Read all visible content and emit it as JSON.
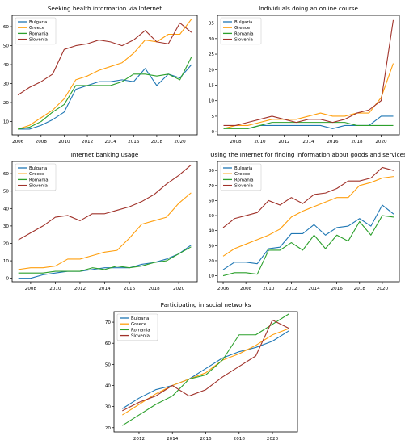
{
  "colors": {
    "Bulgaria": "#1f77b4",
    "Greece": "#ff9f0e",
    "Romania": "#2ca02c",
    "Slovenia": "#a0322a"
  },
  "chart_data": [
    {
      "type": "line",
      "title": "Seeking health information via Internet",
      "xlabel": "",
      "ylabel": "",
      "xlim": [
        2005.5,
        2021.5
      ],
      "ylim": [
        3,
        66
      ],
      "xticks": [
        "2006",
        "2008",
        "2010",
        "2012",
        "2014",
        "2016",
        "2018",
        "2020"
      ],
      "yticks": [
        "10",
        "20",
        "30",
        "40",
        "50",
        "60"
      ],
      "legend": "top-left",
      "x": [
        2006,
        2007,
        2008,
        2009,
        2010,
        2011,
        2012,
        2013,
        2014,
        2015,
        2016,
        2017,
        2018,
        2019,
        2020,
        2021
      ],
      "series": [
        {
          "name": "Bulgaria",
          "values": [
            6,
            6,
            8,
            11,
            15,
            27,
            29,
            31,
            31,
            32,
            31,
            38,
            29,
            35,
            33,
            40
          ]
        },
        {
          "name": "Greece",
          "values": [
            6,
            8,
            12,
            16,
            22,
            32,
            34,
            37,
            39,
            41,
            46,
            53,
            52,
            56,
            56,
            64
          ]
        },
        {
          "name": "Romania",
          "values": [
            6,
            7,
            10,
            15,
            19,
            29,
            29,
            29,
            29,
            31,
            35,
            35,
            34,
            35,
            32,
            44
          ]
        },
        {
          "name": "Slovenia",
          "values": [
            24,
            28,
            31,
            35,
            48,
            50,
            51,
            53,
            52,
            50,
            53,
            58,
            52,
            51,
            62,
            57
          ]
        }
      ]
    },
    {
      "type": "line",
      "title": "Individuals doing an online course",
      "xlabel": "",
      "ylabel": "",
      "xlim": [
        2006.5,
        2021.5
      ],
      "ylim": [
        -1,
        37.5
      ],
      "xticks": [
        "2008",
        "2010",
        "2012",
        "2014",
        "2016",
        "2018",
        "2020"
      ],
      "yticks": [
        "0",
        "5",
        "10",
        "15",
        "20",
        "25",
        "30",
        "35"
      ],
      "legend": "top-left",
      "x": [
        2007,
        2008,
        2009,
        2010,
        2011,
        2012,
        2013,
        2014,
        2015,
        2016,
        2017,
        2018,
        2019,
        2020,
        2021
      ],
      "series": [
        {
          "name": "Bulgaria",
          "values": [
            null,
            null,
            1,
            2,
            2,
            2,
            2,
            2,
            2,
            1,
            2,
            2,
            2,
            5,
            5
          ]
        },
        {
          "name": "Greece",
          "values": [
            1,
            2,
            2,
            3,
            4,
            4,
            4,
            5,
            6,
            5,
            5,
            6,
            6,
            11,
            22
          ]
        },
        {
          "name": "Romania",
          "values": [
            1,
            1,
            1,
            2,
            3,
            3,
            3,
            3,
            3,
            3,
            3,
            2,
            2,
            2,
            2
          ]
        },
        {
          "name": "Slovenia",
          "values": [
            2,
            2,
            3,
            4,
            5,
            4,
            3,
            4,
            4,
            3,
            4,
            6,
            7,
            10,
            36
          ]
        }
      ]
    },
    {
      "type": "line",
      "title": "Internet banking usage",
      "xlabel": "",
      "ylabel": "",
      "xlim": [
        2006.5,
        2021.5
      ],
      "ylim": [
        -2,
        67
      ],
      "xticks": [
        "2008",
        "2010",
        "2012",
        "2014",
        "2016",
        "2018",
        "2020"
      ],
      "yticks": [
        "0",
        "10",
        "20",
        "30",
        "40",
        "50",
        "60"
      ],
      "legend": "top-left",
      "x": [
        2007,
        2008,
        2009,
        2010,
        2011,
        2012,
        2013,
        2014,
        2015,
        2016,
        2017,
        2018,
        2019,
        2020,
        2021
      ],
      "series": [
        {
          "name": "Bulgaria",
          "values": [
            0,
            0,
            2,
            3,
            4,
            4,
            5,
            6,
            6,
            6,
            8,
            9,
            11,
            14,
            19
          ]
        },
        {
          "name": "Greece",
          "values": [
            5,
            6,
            6,
            7,
            11,
            11,
            13,
            15,
            16,
            23,
            31,
            33,
            35,
            43,
            49
          ]
        },
        {
          "name": "Romania",
          "values": [
            3,
            3,
            3,
            4,
            4,
            4,
            6,
            5,
            7,
            6,
            7,
            9,
            10,
            14,
            18
          ]
        },
        {
          "name": "Slovenia",
          "values": [
            22,
            26,
            30,
            35,
            36,
            33,
            37,
            37,
            39,
            41,
            44,
            48,
            54,
            59,
            65
          ]
        }
      ]
    },
    {
      "type": "line",
      "title": "Using the Internet for finding information about goods and services",
      "xlabel": "",
      "ylabel": "",
      "xlim": [
        2005.5,
        2021.5
      ],
      "ylim": [
        6,
        86
      ],
      "xticks": [
        "2006",
        "2008",
        "2010",
        "2012",
        "2014",
        "2016",
        "2018",
        "2020"
      ],
      "yticks": [
        "10",
        "20",
        "30",
        "40",
        "50",
        "60",
        "70",
        "80"
      ],
      "legend": "top-left",
      "x": [
        2006,
        2007,
        2008,
        2009,
        2010,
        2011,
        2012,
        2013,
        2014,
        2015,
        2016,
        2017,
        2018,
        2019,
        2020,
        2021
      ],
      "series": [
        {
          "name": "Bulgaria",
          "values": [
            14,
            19,
            19,
            18,
            28,
            29,
            38,
            38,
            44,
            37,
            42,
            43,
            48,
            43,
            57,
            51
          ]
        },
        {
          "name": "Greece",
          "values": [
            23,
            28,
            31,
            34,
            37,
            41,
            49,
            53,
            56,
            59,
            62,
            62,
            70,
            72,
            75,
            76
          ]
        },
        {
          "name": "Romania",
          "values": [
            10,
            12,
            12,
            11,
            27,
            27,
            32,
            27,
            37,
            28,
            37,
            33,
            46,
            37,
            50,
            49
          ]
        },
        {
          "name": "Slovenia",
          "values": [
            42,
            48,
            50,
            52,
            60,
            57,
            62,
            58,
            64,
            65,
            68,
            73,
            73,
            75,
            82,
            80
          ]
        }
      ]
    },
    {
      "type": "line",
      "title": "Participating in social networks",
      "xlabel": "",
      "ylabel": "",
      "xlim": [
        2010.5,
        2021.5
      ],
      "ylim": [
        18,
        75
      ],
      "xticks": [
        "2012",
        "2014",
        "2016",
        "2018",
        "2020"
      ],
      "yticks": [
        "20",
        "30",
        "40",
        "50",
        "60",
        "70"
      ],
      "legend": "top-left",
      "x": [
        2011,
        2012,
        2013,
        2014,
        2015,
        2016,
        2017,
        2018,
        2019,
        2020,
        2021
      ],
      "series": [
        {
          "name": "Bulgaria",
          "values": [
            29,
            34,
            38,
            40,
            43,
            48,
            53,
            56,
            58,
            61,
            66
          ]
        },
        {
          "name": "Greece",
          "values": [
            26,
            31,
            36,
            40,
            43,
            46,
            52,
            55,
            59,
            64,
            67
          ]
        },
        {
          "name": "Romania",
          "values": [
            21,
            26,
            31,
            35,
            43,
            45,
            52,
            64,
            64,
            69,
            74
          ]
        },
        {
          "name": "Slovenia",
          "values": [
            28,
            32,
            35,
            40,
            35,
            38,
            44,
            49,
            54,
            71,
            67
          ]
        }
      ]
    }
  ]
}
